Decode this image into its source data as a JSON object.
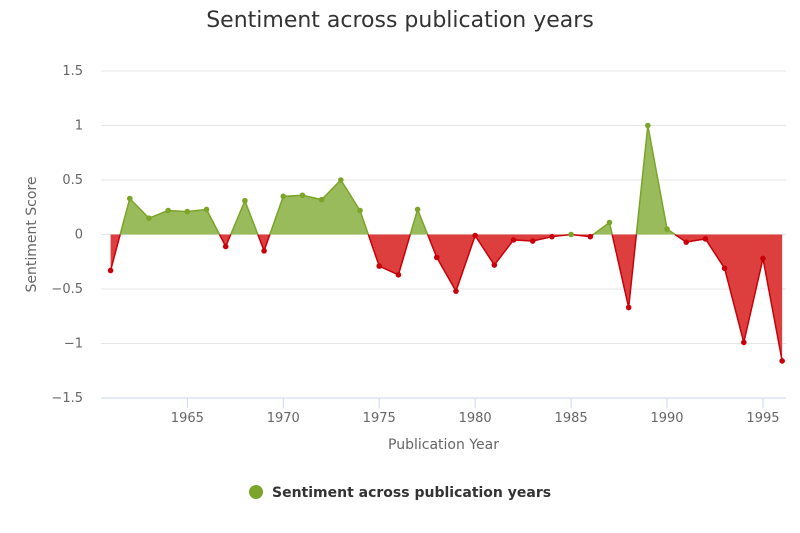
{
  "chart_data": {
    "type": "area",
    "title": "Sentiment across publication years",
    "xlabel": "Publication Year",
    "ylabel": "Sentiment Score",
    "xlim": [
      1960.5,
      1996.2
    ],
    "ylim": [
      -1.5,
      1.5
    ],
    "x_ticks": [
      1965,
      1970,
      1975,
      1980,
      1985,
      1990,
      1995
    ],
    "y_ticks": [
      1.5,
      1,
      0.5,
      0,
      -0.5,
      -1,
      -1.5
    ],
    "y_tick_labels": [
      "1.5",
      "1",
      "0.5",
      "0",
      "−0.5",
      "−1",
      "−1.5"
    ],
    "grid": true,
    "legend_position": "bottom-center",
    "colors": {
      "positive": "#7ba428",
      "positive_fill": "#99bb5c",
      "negative": "#c8000a",
      "negative_fill": "#dd3f3f"
    },
    "series": [
      {
        "name": "Sentiment across publication years",
        "x": [
          1961,
          1962,
          1963,
          1964,
          1965,
          1966,
          1967,
          1968,
          1969,
          1970,
          1971,
          1972,
          1973,
          1974,
          1975,
          1976,
          1977,
          1978,
          1979,
          1980,
          1981,
          1982,
          1983,
          1984,
          1985,
          1986,
          1987,
          1988,
          1989,
          1990,
          1991,
          1992,
          1993,
          1994,
          1995,
          1996
        ],
        "values": [
          -0.33,
          0.33,
          0.15,
          0.22,
          0.21,
          0.23,
          -0.11,
          0.31,
          -0.15,
          0.35,
          0.36,
          0.32,
          0.5,
          0.22,
          -0.29,
          -0.37,
          0.23,
          -0.21,
          -0.52,
          -0.01,
          -0.28,
          -0.05,
          -0.06,
          -0.02,
          0.0,
          -0.02,
          0.11,
          -0.67,
          1.0,
          0.05,
          -0.07,
          -0.04,
          -0.31,
          -0.99,
          -0.22,
          -1.16
        ]
      }
    ]
  }
}
